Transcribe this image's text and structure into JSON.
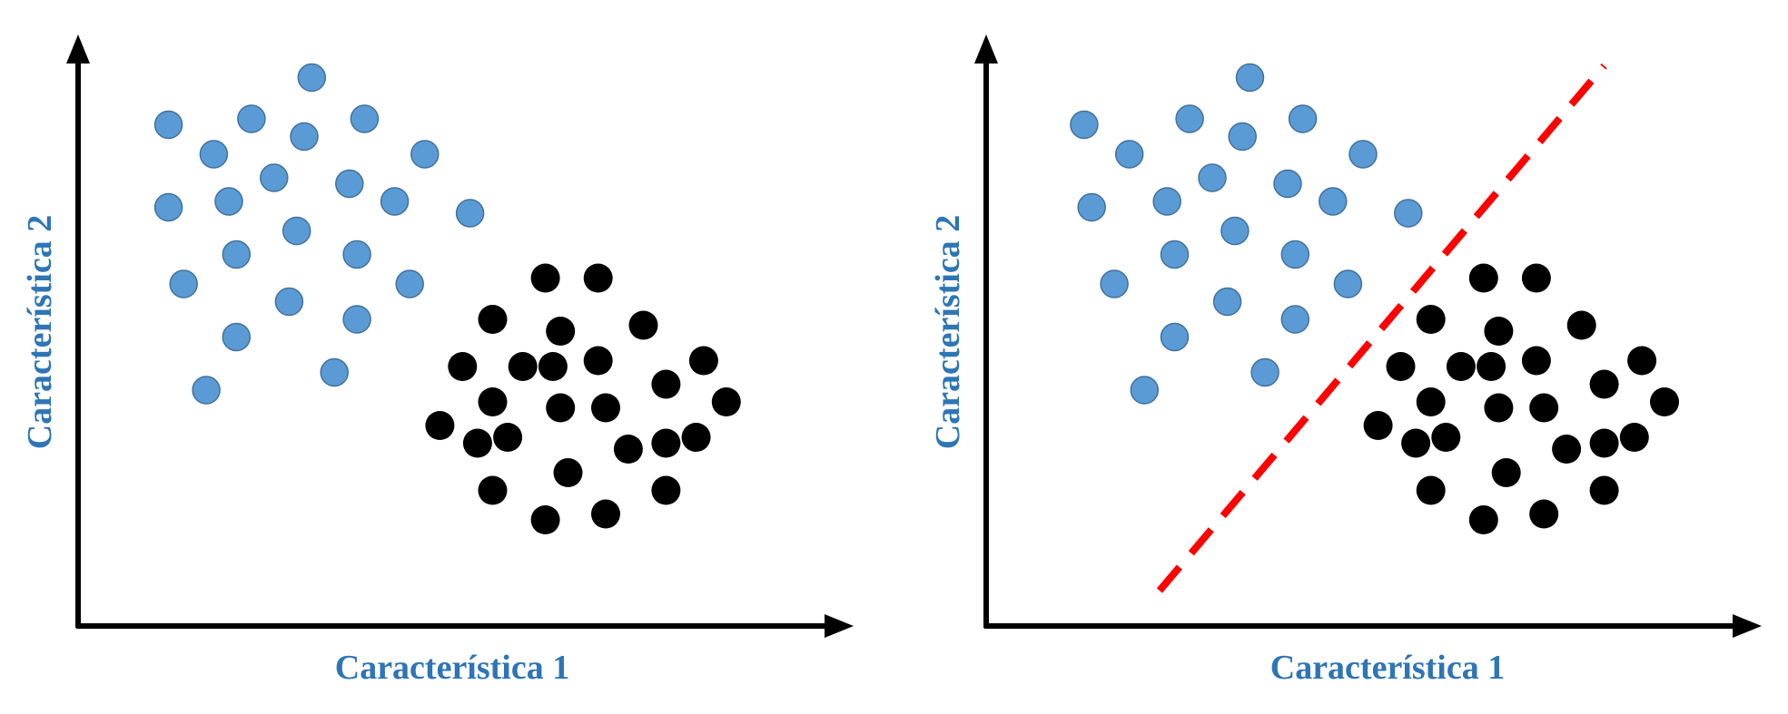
{
  "colors": {
    "class_a": "#5b9bd5",
    "class_a_stroke": "#41719c",
    "class_b": "#000000",
    "axis": "#000000",
    "label": "#2e75b6",
    "boundary": "#ff0000"
  },
  "chart_data": [
    {
      "type": "scatter",
      "panel": "left",
      "title": "",
      "xlabel": "Característica 1",
      "ylabel": "Característica 2",
      "xlim": [
        0,
        100
      ],
      "ylim": [
        0,
        100
      ],
      "grid": false,
      "legend": "none",
      "series": [
        {
          "color": "#5b9bd5",
          "points": [
            [
              12,
              85
            ],
            [
              18,
              80
            ],
            [
              23,
              86
            ],
            [
              31,
              93
            ],
            [
              30,
              83
            ],
            [
              38,
              86
            ],
            [
              46,
              80
            ],
            [
              26,
              76
            ],
            [
              36,
              75
            ],
            [
              42,
              72
            ],
            [
              52,
              70
            ],
            [
              12,
              71
            ],
            [
              20,
              72
            ],
            [
              29,
              67
            ],
            [
              37,
              63
            ],
            [
              21,
              63
            ],
            [
              14,
              58
            ],
            [
              28,
              55
            ],
            [
              44,
              58
            ],
            [
              37,
              52
            ],
            [
              21,
              49
            ],
            [
              34,
              43
            ],
            [
              17,
              40
            ]
          ]
        },
        {
          "color": "#000000",
          "points": [
            [
              62,
              59
            ],
            [
              69,
              59
            ],
            [
              55,
              52
            ],
            [
              64,
              50
            ],
            [
              75,
              51
            ],
            [
              59,
              44
            ],
            [
              51,
              44
            ],
            [
              63,
              44
            ],
            [
              69,
              45
            ],
            [
              83,
              45
            ],
            [
              55,
              38
            ],
            [
              78,
              41
            ],
            [
              86,
              38
            ],
            [
              48,
              34
            ],
            [
              64,
              37
            ],
            [
              70,
              37
            ],
            [
              53,
              31
            ],
            [
              57,
              32
            ],
            [
              73,
              30
            ],
            [
              78,
              31
            ],
            [
              82,
              32
            ],
            [
              65,
              26
            ],
            [
              55,
              23
            ],
            [
              78,
              23
            ],
            [
              62,
              18
            ],
            [
              70,
              19
            ]
          ]
        }
      ]
    },
    {
      "type": "scatter",
      "panel": "right",
      "title": "",
      "xlabel": "Característica 1",
      "ylabel": "Característica 2",
      "xlim": [
        0,
        100
      ],
      "ylim": [
        0,
        100
      ],
      "grid": false,
      "legend": "none",
      "series": [
        {
          "color": "#5b9bd5",
          "points": [
            [
              13,
              85
            ],
            [
              19,
              80
            ],
            [
              27,
              86
            ],
            [
              35,
              93
            ],
            [
              34,
              83
            ],
            [
              42,
              86
            ],
            [
              50,
              80
            ],
            [
              30,
              76
            ],
            [
              40,
              75
            ],
            [
              46,
              72
            ],
            [
              56,
              70
            ],
            [
              14,
              71
            ],
            [
              24,
              72
            ],
            [
              33,
              67
            ],
            [
              41,
              63
            ],
            [
              25,
              63
            ],
            [
              17,
              58
            ],
            [
              32,
              55
            ],
            [
              48,
              58
            ],
            [
              41,
              52
            ],
            [
              25,
              49
            ],
            [
              37,
              43
            ],
            [
              21,
              40
            ]
          ]
        },
        {
          "color": "#000000",
          "points": [
            [
              66,
              59
            ],
            [
              73,
              59
            ],
            [
              59,
              52
            ],
            [
              68,
              50
            ],
            [
              79,
              51
            ],
            [
              63,
              44
            ],
            [
              55,
              44
            ],
            [
              67,
              44
            ],
            [
              73,
              45
            ],
            [
              87,
              45
            ],
            [
              59,
              38
            ],
            [
              82,
              41
            ],
            [
              90,
              38
            ],
            [
              52,
              34
            ],
            [
              68,
              37
            ],
            [
              74,
              37
            ],
            [
              57,
              31
            ],
            [
              61,
              32
            ],
            [
              77,
              30
            ],
            [
              82,
              31
            ],
            [
              86,
              32
            ],
            [
              69,
              26
            ],
            [
              59,
              23
            ],
            [
              82,
              23
            ],
            [
              66,
              18
            ],
            [
              74,
              19
            ]
          ]
        }
      ],
      "decision_boundary": {
        "style": "dashed",
        "color": "#ff0000",
        "from": [
          23,
          6
        ],
        "to": [
          82,
          95
        ]
      }
    }
  ]
}
